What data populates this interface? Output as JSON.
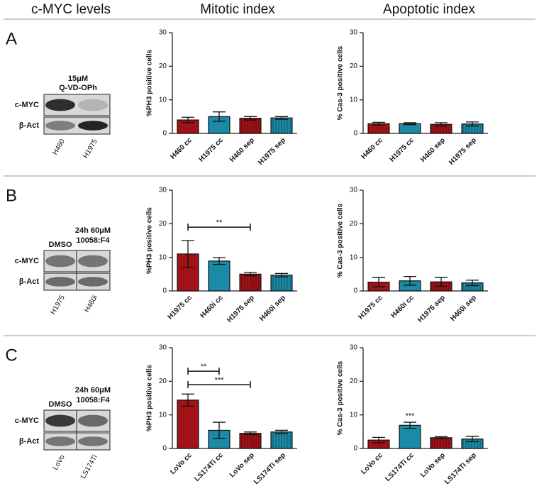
{
  "figure": {
    "headers": [
      "c-MYC levels",
      "Mitotic index",
      "Apoptotic index"
    ],
    "panels": [
      {
        "letter": "A",
        "blot": {
          "treatment": [
            "15μM",
            "Q-VD-OPh"
          ],
          "rows": [
            "c-MYC",
            "β-Act"
          ],
          "lanes": [
            "H460",
            "H1975"
          ]
        }
      },
      {
        "letter": "B",
        "blot": {
          "control": "DMSO",
          "treatment": [
            "24h 60μM",
            "10058:F4"
          ],
          "rows": [
            "c-MYC",
            "β-Act"
          ],
          "lanes": [
            "H1975",
            "H460i"
          ]
        }
      },
      {
        "letter": "C",
        "blot": {
          "control": "DMSO",
          "treatment": [
            "24h 60μM",
            "10058:F4"
          ],
          "rows": [
            "c-MYC",
            "β-Act"
          ],
          "lanes": [
            "LoVo",
            "LS174Ti"
          ]
        }
      }
    ]
  },
  "chart_data": [
    {
      "type": "bar",
      "ylabel": "%PH3 positive cells",
      "categories": [
        "H460 cc",
        "H1975 cc",
        "H460 sep",
        "H1975 sep"
      ],
      "values": [
        4.0,
        5.0,
        4.5,
        4.6
      ],
      "errors": [
        0.8,
        1.4,
        0.5,
        0.4
      ],
      "colors": [
        "#a11217",
        "#1b8aa6",
        "#a11217",
        "#1b8aa6"
      ],
      "hatched": [
        false,
        false,
        true,
        true
      ],
      "ylim": [
        0,
        30
      ],
      "yticks": [
        0,
        10,
        20,
        30
      ]
    },
    {
      "type": "bar",
      "ylabel": "% Cas-3 positive cells",
      "categories": [
        "H460 cc",
        "H1975 cc",
        "H460 sep",
        "H1975 sep"
      ],
      "values": [
        2.9,
        2.9,
        2.7,
        2.8
      ],
      "errors": [
        0.4,
        0.3,
        0.5,
        0.6
      ],
      "colors": [
        "#a11217",
        "#1b8aa6",
        "#a11217",
        "#1b8aa6"
      ],
      "hatched": [
        false,
        false,
        true,
        true
      ],
      "ylim": [
        0,
        30
      ],
      "yticks": [
        0,
        10,
        20,
        30
      ]
    },
    {
      "type": "bar",
      "ylabel": "%PH3 positive cells",
      "categories": [
        "H1975 cc",
        "H460i cc",
        "H1975 sep",
        "H460i sep"
      ],
      "values": [
        11.0,
        8.9,
        5.0,
        4.7
      ],
      "errors": [
        4.0,
        1.0,
        0.5,
        0.5
      ],
      "colors": [
        "#a11217",
        "#1b8aa6",
        "#a11217",
        "#1b8aa6"
      ],
      "hatched": [
        false,
        false,
        true,
        true
      ],
      "ylim": [
        0,
        30
      ],
      "yticks": [
        0,
        10,
        20,
        30
      ],
      "brackets": [
        {
          "from": 0,
          "to": 2,
          "y": 19,
          "label": "**"
        }
      ]
    },
    {
      "type": "bar",
      "ylabel": "% Cas-3 positive cells",
      "categories": [
        "H1975 cc",
        "H460i cc",
        "H1975 sep",
        "H460i sep"
      ],
      "values": [
        2.6,
        3.0,
        2.7,
        2.4
      ],
      "errors": [
        1.4,
        1.3,
        1.3,
        0.8
      ],
      "colors": [
        "#a11217",
        "#1b8aa6",
        "#a11217",
        "#1b8aa6"
      ],
      "hatched": [
        false,
        false,
        true,
        true
      ],
      "ylim": [
        0,
        30
      ],
      "yticks": [
        0,
        10,
        20,
        30
      ]
    },
    {
      "type": "bar",
      "ylabel": "%PH3 positive cells",
      "categories": [
        "LoVo cc",
        "LS174Ti cc",
        "LoVo sep",
        "LS174Ti sep"
      ],
      "values": [
        14.4,
        5.4,
        4.5,
        4.9
      ],
      "errors": [
        1.8,
        2.4,
        0.4,
        0.5
      ],
      "colors": [
        "#a11217",
        "#1b8aa6",
        "#a11217",
        "#1b8aa6"
      ],
      "hatched": [
        false,
        false,
        true,
        true
      ],
      "ylim": [
        0,
        30
      ],
      "yticks": [
        0,
        10,
        20,
        30
      ],
      "brackets": [
        {
          "from": 0,
          "to": 1,
          "y": 23,
          "label": "**"
        },
        {
          "from": 0,
          "to": 2,
          "y": 19,
          "label": "***"
        }
      ]
    },
    {
      "type": "bar",
      "ylabel": "% Cas-3 positive cells",
      "categories": [
        "LoVo cc",
        "LS174Ti cc",
        "LoVo sep",
        "LS174Ti sep"
      ],
      "values": [
        2.5,
        6.9,
        3.2,
        2.8
      ],
      "errors": [
        0.8,
        0.9,
        0.3,
        0.8
      ],
      "colors": [
        "#a11217",
        "#1b8aa6",
        "#a11217",
        "#1b8aa6"
      ],
      "hatched": [
        false,
        false,
        true,
        true
      ],
      "ylim": [
        0,
        30
      ],
      "yticks": [
        0,
        10,
        20,
        30
      ],
      "marks": [
        {
          "at": 1,
          "y": 9.6,
          "label": "***"
        }
      ]
    }
  ]
}
